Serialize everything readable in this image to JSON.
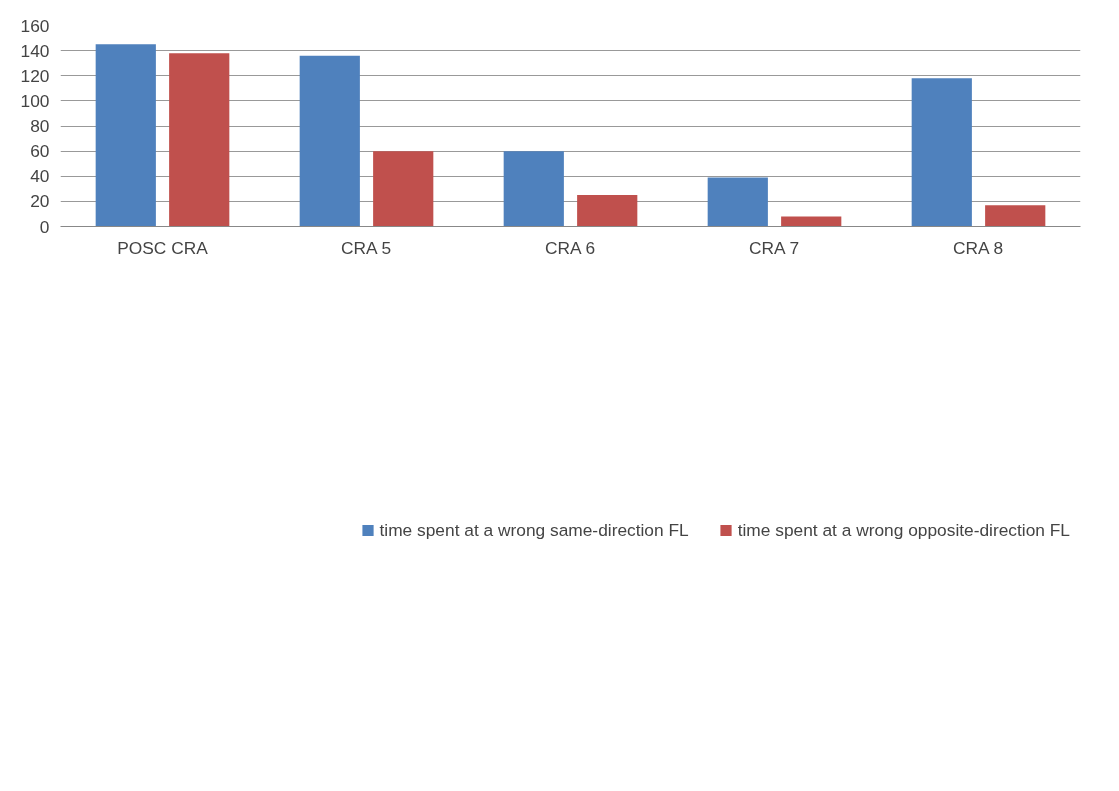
{
  "chart_data": {
    "type": "bar",
    "categories": [
      "POSC CRA",
      "CRA 5",
      "CRA 6",
      "CRA 7",
      "CRA 8"
    ],
    "series": [
      {
        "name": "time spent at a wrong same-direction FL",
        "color": "#4f81bd",
        "values": [
          145,
          136,
          60,
          39,
          118
        ]
      },
      {
        "name": "time spent at a wrong opposite-direction FL",
        "color": "#c0504d",
        "values": [
          138,
          60,
          25,
          8,
          17
        ]
      }
    ],
    "ylim": [
      0,
      160
    ],
    "yticks": [
      0,
      20,
      40,
      60,
      80,
      100,
      120,
      140,
      160
    ],
    "grid": "y",
    "legend": "bottom"
  }
}
